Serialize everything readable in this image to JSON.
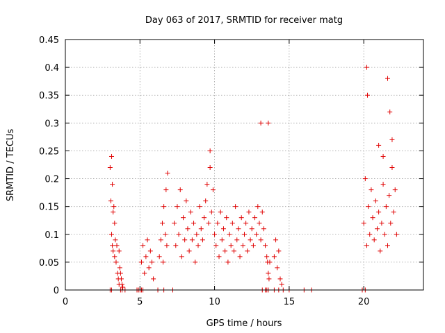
{
  "chart_data": {
    "type": "scatter",
    "title": "Day 063 of 2017, SRMTID for receiver matg",
    "xlabel": "GPS time / hours",
    "ylabel": "SRMTID / TECUs",
    "xlim": [
      0,
      24
    ],
    "ylim": [
      0,
      0.45
    ],
    "xticks": [
      0,
      5,
      10,
      15,
      20
    ],
    "xtick_labels": [
      "0",
      "5",
      "10",
      "15",
      "20"
    ],
    "yticks": [
      0,
      0.05,
      0.1,
      0.15,
      0.2,
      0.25,
      0.3,
      0.35,
      0.4,
      0.45
    ],
    "ytick_labels": [
      "0",
      "0.05",
      "0.1",
      "0.15",
      "0.2",
      "0.25",
      "0.3",
      "0.35",
      "0.4",
      "0.45"
    ],
    "grid": true,
    "marker": "+",
    "color": "#e00000",
    "series": [
      {
        "name": "SRMTID",
        "x": [
          3.0,
          3.05,
          3.1,
          3.1,
          3.15,
          3.15,
          3.2,
          3.2,
          3.25,
          3.3,
          3.3,
          3.35,
          3.4,
          3.45,
          3.5,
          3.55,
          3.6,
          3.6,
          3.65,
          3.7,
          3.75,
          3.8,
          3.85,
          5.1,
          5.2,
          5.3,
          5.4,
          5.5,
          5.6,
          5.7,
          5.8,
          5.9,
          6.3,
          6.4,
          6.5,
          6.55,
          6.6,
          6.7,
          6.75,
          6.8,
          6.85,
          7.3,
          7.4,
          7.5,
          7.6,
          7.7,
          7.8,
          7.9,
          8.0,
          8.1,
          8.2,
          8.3,
          8.4,
          8.5,
          8.6,
          8.7,
          8.8,
          8.9,
          9.0,
          9.1,
          9.2,
          9.3,
          9.4,
          9.5,
          9.6,
          9.7,
          9.8,
          9.9,
          10.0,
          10.1,
          10.2,
          10.3,
          10.4,
          10.5,
          10.6,
          10.7,
          10.8,
          10.9,
          11.0,
          11.1,
          11.2,
          11.3,
          11.4,
          11.5,
          11.6,
          11.7,
          11.8,
          11.9,
          12.0,
          12.1,
          12.2,
          12.3,
          12.4,
          12.5,
          12.6,
          12.7,
          12.8,
          12.9,
          13.0,
          13.1,
          13.2,
          13.3,
          13.4,
          13.5,
          13.55,
          13.6,
          13.65,
          13.7,
          14.0,
          14.1,
          14.2,
          14.3,
          14.4,
          14.5,
          20.0,
          20.1,
          20.2,
          20.3,
          20.4,
          20.5,
          20.6,
          20.7,
          20.8,
          20.9,
          21.0,
          21.1,
          21.2,
          21.3,
          21.4,
          21.5,
          21.6,
          21.7,
          21.8,
          21.9,
          22.0,
          22.1,
          22.2,
          20.2,
          20.25,
          21.0,
          21.3,
          21.6,
          21.75,
          21.9,
          13.1,
          13.6,
          9.7,
          3.0,
          3.1,
          3.7,
          3.8,
          4.0,
          4.8,
          4.9,
          5.0,
          5.1,
          5.2,
          6.2,
          6.6,
          7.2,
          13.2,
          13.4,
          13.5,
          13.6,
          14.0,
          14.3,
          14.6,
          15.0,
          16.0,
          16.5,
          19.9,
          20.1
        ],
        "y": [
          0.22,
          0.16,
          0.1,
          0.24,
          0.08,
          0.19,
          0.14,
          0.07,
          0.15,
          0.06,
          0.12,
          0.09,
          0.05,
          0.08,
          0.03,
          0.02,
          0.07,
          0.01,
          0.04,
          0.03,
          0.02,
          0.01,
          0.005,
          0.05,
          0.08,
          0.03,
          0.06,
          0.09,
          0.04,
          0.07,
          0.05,
          0.02,
          0.06,
          0.09,
          0.12,
          0.05,
          0.15,
          0.1,
          0.18,
          0.08,
          0.21,
          0.12,
          0.08,
          0.15,
          0.1,
          0.18,
          0.06,
          0.13,
          0.09,
          0.16,
          0.11,
          0.07,
          0.14,
          0.09,
          0.12,
          0.05,
          0.1,
          0.08,
          0.15,
          0.11,
          0.09,
          0.13,
          0.16,
          0.19,
          0.12,
          0.22,
          0.14,
          0.18,
          0.1,
          0.08,
          0.12,
          0.06,
          0.14,
          0.09,
          0.11,
          0.07,
          0.13,
          0.05,
          0.1,
          0.08,
          0.12,
          0.07,
          0.15,
          0.09,
          0.11,
          0.06,
          0.13,
          0.08,
          0.1,
          0.12,
          0.07,
          0.14,
          0.09,
          0.11,
          0.08,
          0.13,
          0.1,
          0.15,
          0.12,
          0.09,
          0.14,
          0.11,
          0.08,
          0.06,
          0.05,
          0.03,
          0.02,
          0.05,
          0.06,
          0.09,
          0.04,
          0.07,
          0.02,
          0.01,
          0.12,
          0.2,
          0.08,
          0.15,
          0.1,
          0.18,
          0.13,
          0.09,
          0.16,
          0.11,
          0.14,
          0.07,
          0.12,
          0.19,
          0.1,
          0.15,
          0.08,
          0.17,
          0.12,
          0.22,
          0.14,
          0.18,
          0.1,
          0.4,
          0.35,
          0.26,
          0.24,
          0.38,
          0.32,
          0.27,
          0.3,
          0.3,
          0.25,
          0,
          0,
          0,
          0,
          0,
          0,
          0,
          0,
          0,
          0,
          0,
          0,
          0,
          0,
          0,
          0,
          0,
          0,
          0,
          0,
          0,
          0,
          0,
          0,
          0
        ]
      }
    ]
  }
}
